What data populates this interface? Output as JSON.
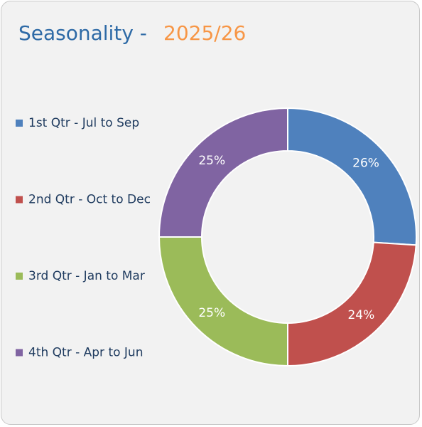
{
  "chart_data": {
    "type": "pie",
    "title": "Seasonality -",
    "subtitle": "2025/26",
    "categories": [
      "1st Qtr - Jul to Sep",
      "2nd Qtr - Oct to Dec",
      "3rd Qtr - Jan to Mar",
      "4th Qtr - Apr to Jun"
    ],
    "values": [
      26,
      24,
      25,
      25
    ],
    "value_labels": [
      "26%",
      "24%",
      "25%",
      "25%"
    ],
    "colors": [
      "#4f81bd",
      "#c0504d",
      "#9bbb59",
      "#8064a2"
    ],
    "legend": "left"
  }
}
